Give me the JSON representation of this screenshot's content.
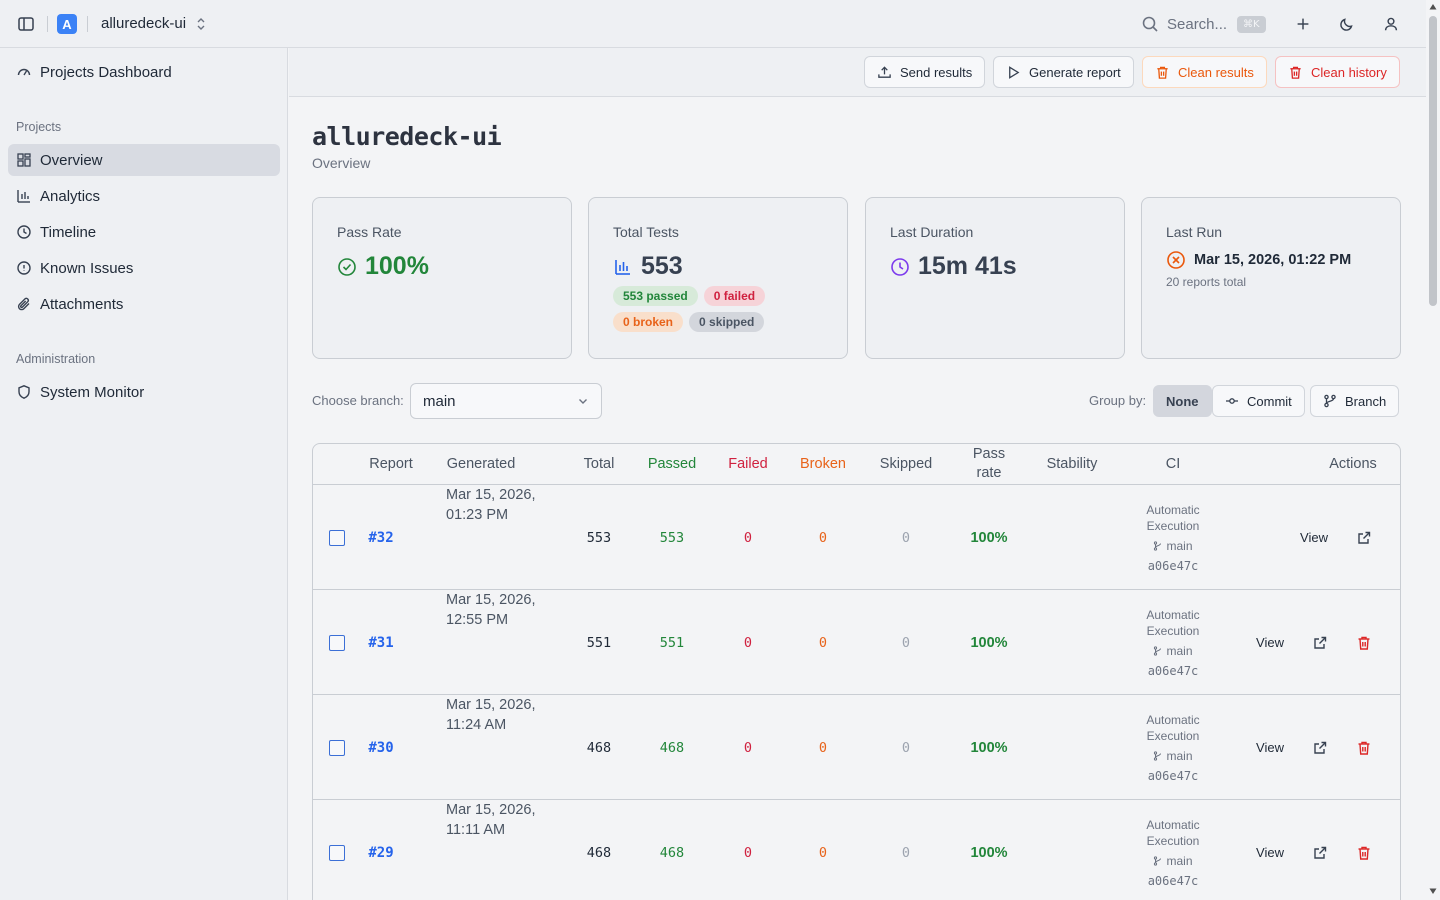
{
  "app": {
    "logo_letter": "A",
    "name": "alluredeck-ui"
  },
  "search": {
    "placeholder": "Search...",
    "shortcut": "⌘K"
  },
  "sidebar": {
    "top_item": "Projects Dashboard",
    "projects_heading": "Projects",
    "items": [
      {
        "label": "Overview",
        "icon": "grid-icon",
        "active": true
      },
      {
        "label": "Analytics",
        "icon": "bar-chart-icon"
      },
      {
        "label": "Timeline",
        "icon": "clock-icon"
      },
      {
        "label": "Known Issues",
        "icon": "alert-circle-icon"
      },
      {
        "label": "Attachments",
        "icon": "paperclip-icon"
      }
    ],
    "admin_heading": "Administration",
    "admin_items": [
      {
        "label": "System Monitor",
        "icon": "shield-icon"
      }
    ]
  },
  "actions": {
    "send_results": "Send results",
    "generate_report": "Generate report",
    "clean_results": "Clean results",
    "clean_history": "Clean history"
  },
  "page": {
    "title": "alluredeck-ui",
    "subtitle": "Overview"
  },
  "cards": {
    "pass_rate": {
      "label": "Pass Rate",
      "value": "100%"
    },
    "total_tests": {
      "label": "Total Tests",
      "value": "553",
      "badges": {
        "passed": "553 passed",
        "failed": "0 failed",
        "broken": "0 broken",
        "skipped": "0 skipped"
      }
    },
    "last_duration": {
      "label": "Last Duration",
      "value": "15m 41s"
    },
    "last_run": {
      "label": "Last Run",
      "value": "Mar 15, 2026, 01:22 PM",
      "sub": "20 reports total"
    }
  },
  "filters": {
    "branch_label": "Choose branch:",
    "branch_value": "main",
    "group_label": "Group by:",
    "group_options": [
      "None",
      "Commit",
      "Branch"
    ],
    "group_selected": "None"
  },
  "table": {
    "headers": {
      "report": "Report",
      "generated": "Generated",
      "total": "Total",
      "passed": "Passed",
      "failed": "Failed",
      "broken": "Broken",
      "skipped": "Skipped",
      "pass_rate": "Pass rate",
      "stability": "Stability",
      "ci": "CI",
      "actions": "Actions"
    },
    "view_label": "View",
    "rows": [
      {
        "report": "#32",
        "generated_date": "Mar 15, 2026,",
        "generated_time": "01:23 PM",
        "total": "553",
        "passed": "553",
        "failed": "0",
        "broken": "0",
        "skipped": "0",
        "pass_rate": "100%",
        "ci_name_1": "Automatic",
        "ci_name_2": "Execution",
        "ci_branch": "main",
        "ci_sha": "a06e47c",
        "deletable": false
      },
      {
        "report": "#31",
        "generated_date": "Mar 15, 2026,",
        "generated_time": "12:55 PM",
        "total": "551",
        "passed": "551",
        "failed": "0",
        "broken": "0",
        "skipped": "0",
        "pass_rate": "100%",
        "ci_name_1": "Automatic",
        "ci_name_2": "Execution",
        "ci_branch": "main",
        "ci_sha": "a06e47c",
        "deletable": true
      },
      {
        "report": "#30",
        "generated_date": "Mar 15, 2026,",
        "generated_time": "11:24 AM",
        "total": "468",
        "passed": "468",
        "failed": "0",
        "broken": "0",
        "skipped": "0",
        "pass_rate": "100%",
        "ci_name_1": "Automatic",
        "ci_name_2": "Execution",
        "ci_branch": "main",
        "ci_sha": "a06e47c",
        "deletable": true
      },
      {
        "report": "#29",
        "generated_date": "Mar 15, 2026,",
        "generated_time": "11:11 AM",
        "total": "468",
        "passed": "468",
        "failed": "0",
        "broken": "0",
        "skipped": "0",
        "pass_rate": "100%",
        "ci_name_1": "Automatic",
        "ci_name_2": "Execution",
        "ci_branch": "main",
        "ci_sha": "a06e47c",
        "deletable": true
      }
    ]
  },
  "colors": {
    "accent": "#3b82f6",
    "pass": "#22863a",
    "fail": "#d0213f",
    "broken": "#e8631a",
    "link": "#2563eb"
  }
}
